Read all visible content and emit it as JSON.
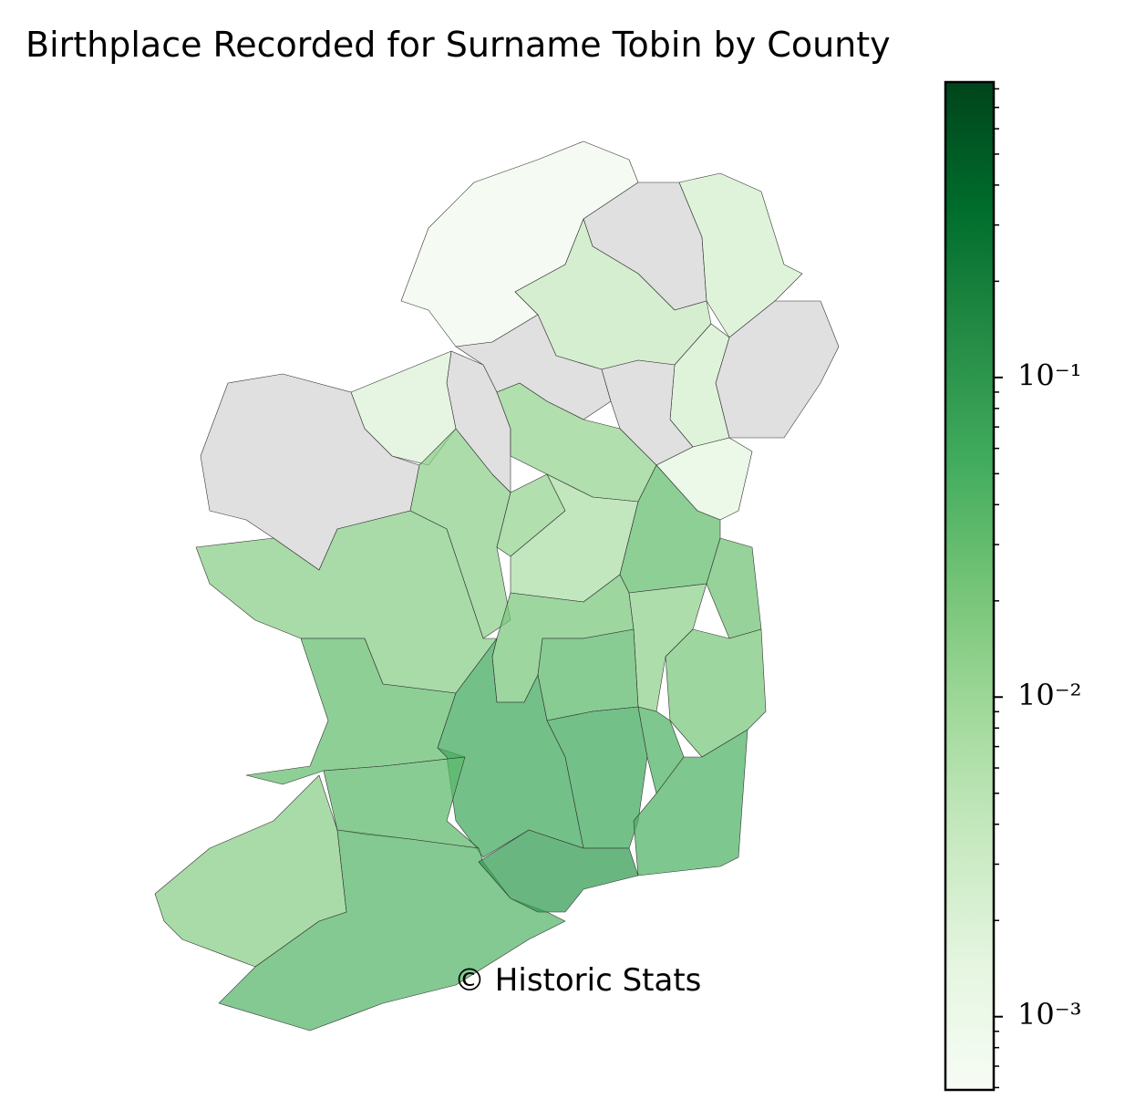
{
  "chart_data": {
    "type": "choropleth",
    "title": "Birthplace Recorded for Surname Tobin by County",
    "annotation": "© Historic Stats",
    "values": [
      0.0008,
      null,
      0.0025,
      0.004,
      null,
      0.0025,
      null,
      null,
      0.0015,
      null,
      0.002,
      0.012,
      null,
      0.014,
      0.012,
      0.007,
      0.03,
      0.025,
      0.015,
      0.02,
      0.013,
      0.02,
      0.03,
      0.035,
      0.06,
      0.06,
      0.045,
      0.045,
      0.035,
      0.015,
      0.04,
      0.09
    ],
    "colormap": "Greens",
    "missing_color": "#e0e0e0",
    "log": true,
    "ylim": [
      0.00059,
      0.84
    ],
    "yticks": [
      {
        "value": 0.001,
        "label": "10⁻³"
      },
      {
        "value": 0.01,
        "label": "10⁻²"
      },
      {
        "value": 0.1,
        "label": "10⁻¹"
      }
    ],
    "yticks_minor": [
      0.0006,
      0.0007,
      0.0008,
      0.0009,
      0.002,
      0.003,
      0.004,
      0.005,
      0.006,
      0.007,
      0.008,
      0.009,
      0.02,
      0.03,
      0.04,
      0.05,
      0.06,
      0.07,
      0.08,
      0.09,
      0.2,
      0.3,
      0.4,
      0.5,
      0.6,
      0.7,
      0.8
    ]
  }
}
